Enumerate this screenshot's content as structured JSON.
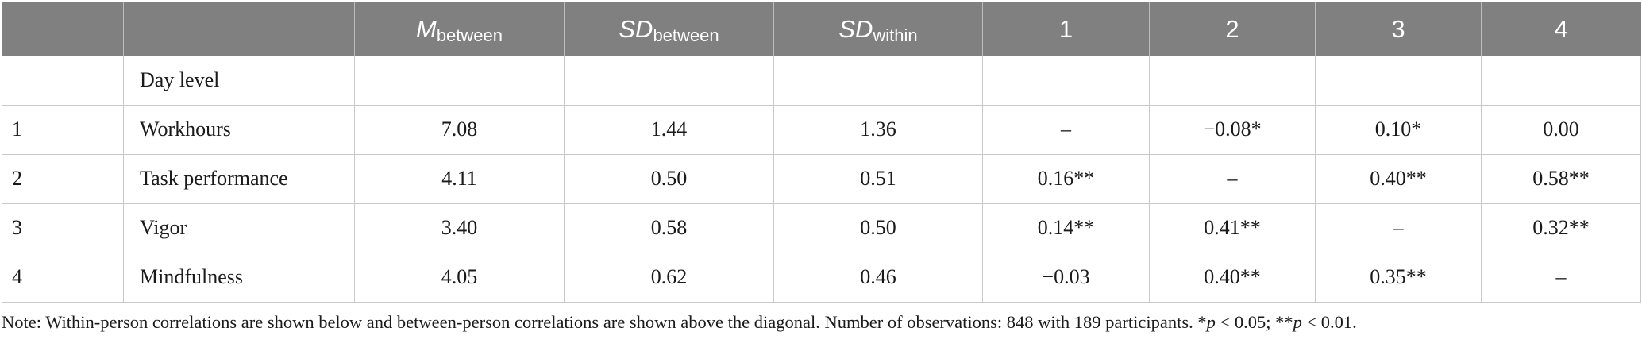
{
  "table": {
    "header": {
      "col0": "",
      "col1": "",
      "m_between": {
        "main": "M",
        "sub": "between"
      },
      "sd_between": {
        "main": "SD",
        "sub": "between"
      },
      "sd_within": {
        "main": "SD",
        "sub": "within"
      },
      "corr_cols": [
        "1",
        "2",
        "3",
        "4"
      ]
    },
    "section_row": {
      "index": "",
      "label": "Day level"
    },
    "rows": [
      {
        "index": "1",
        "label": "Workhours",
        "m_between": "7.08",
        "sd_between": "1.44",
        "sd_within": "1.36",
        "c1": "–",
        "c2": "−0.08*",
        "c3": "0.10*",
        "c4": "0.00"
      },
      {
        "index": "2",
        "label": "Task performance",
        "m_between": "4.11",
        "sd_between": "0.50",
        "sd_within": "0.51",
        "c1": "0.16**",
        "c2": "–",
        "c3": "0.40**",
        "c4": "0.58**"
      },
      {
        "index": "3",
        "label": "Vigor",
        "m_between": "3.40",
        "sd_between": "0.58",
        "sd_within": "0.50",
        "c1": "0.14**",
        "c2": "0.41**",
        "c3": "–",
        "c4": "0.32**"
      },
      {
        "index": "4",
        "label": "Mindfulness",
        "m_between": "4.05",
        "sd_between": "0.62",
        "sd_within": "0.46",
        "c1": "−0.03",
        "c2": "0.40**",
        "c3": "0.35**",
        "c4": "–"
      }
    ]
  },
  "note": {
    "text": "Note: Within-person correlations are shown below and between-person correlations are shown above the diagonal. Number of observations: 848 with 189 participants. *",
    "p1_symbol": "p",
    "p1_rest": " < 0.05; **",
    "p2_symbol": "p",
    "p2_rest": " < 0.01."
  },
  "colors": {
    "header_bg": "#808080",
    "header_text": "#ffffff",
    "grid_line": "#c8c8c8"
  }
}
